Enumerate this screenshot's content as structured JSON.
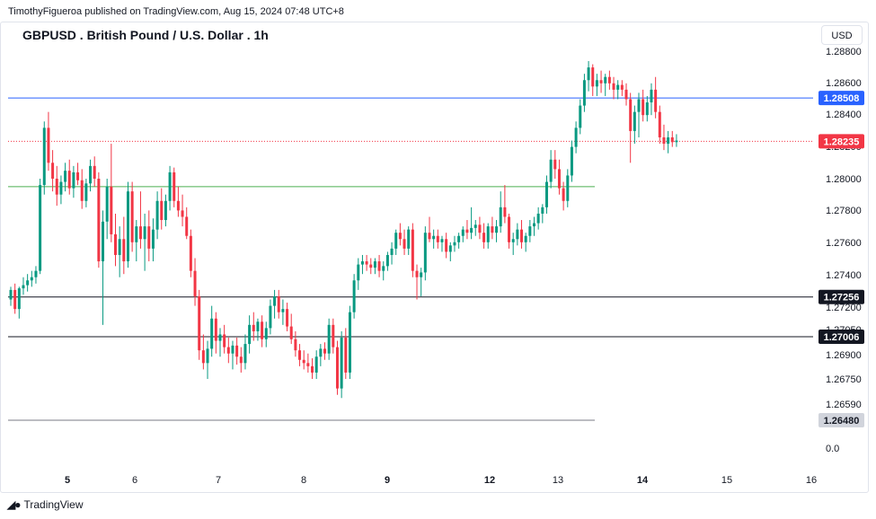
{
  "header": {
    "published": "TimothyFigueroa published on TradingView.com, Aug 15, 2024 07:48 UTC+8"
  },
  "chart_title": "GBPUSD . British Pound / U.S. Dollar . 1h",
  "currency": "USD",
  "footer": {
    "brand": "TradingView",
    "logo_icon": "tradingview-logo-icon"
  },
  "colors": {
    "up": "#089981",
    "down": "#f23645",
    "support_green": "#4caf50",
    "blue_line": "#2962ff",
    "last_price": "#f23645",
    "black_line": "#131722",
    "grey_line": "#787b86"
  },
  "chart_data": {
    "type": "candlestick",
    "title": "GBPUSD . British Pound / U.S. Dollar . 1h",
    "price_axis_ticks": [
      "1.28800",
      "1.28600",
      "1.28400",
      "1.28200",
      "1.28000",
      "1.27800",
      "1.27600",
      "1.27400",
      "1.27200",
      "1.27050",
      "1.26900",
      "1.26750",
      "1.26590",
      "0.0"
    ],
    "time_axis_ticks": [
      "5",
      "6",
      "7",
      "8",
      "9",
      "12",
      "13",
      "14",
      "15",
      "16"
    ],
    "horizontal_lines": [
      {
        "price": 1.28508,
        "label": "1.28508",
        "color": "#2962ff",
        "style": "solid",
        "label_bg": "#2962ff"
      },
      {
        "price": 1.28235,
        "label": "1.28235",
        "color": "#f23645",
        "style": "dotted",
        "label_bg": "#f23645"
      },
      {
        "price": 1.2795,
        "label": "",
        "color": "#4caf50",
        "style": "solid"
      },
      {
        "price": 1.27256,
        "label": "1.27256",
        "color": "#131722",
        "style": "solid",
        "label_bg": "#131722"
      },
      {
        "price": 1.27006,
        "label": "1.27006",
        "color": "#131722",
        "style": "solid",
        "label_bg": "#131722"
      },
      {
        "price": 1.2648,
        "label": "1.26480",
        "color": "#787b86",
        "style": "solid",
        "label_bg": "#d1d4dc"
      }
    ],
    "candles": [
      [
        1.2724,
        1.2732,
        1.272,
        1.273
      ],
      [
        1.273,
        1.2734,
        1.2715,
        1.2718
      ],
      [
        1.2718,
        1.2732,
        1.2712,
        1.2731
      ],
      [
        1.2731,
        1.2738,
        1.2727,
        1.2733
      ],
      [
        1.2733,
        1.274,
        1.2729,
        1.2736
      ],
      [
        1.2736,
        1.2742,
        1.2732,
        1.2738
      ],
      [
        1.2738,
        1.2745,
        1.2734,
        1.2742
      ],
      [
        1.2742,
        1.28,
        1.274,
        1.2796
      ],
      [
        1.2796,
        1.2836,
        1.279,
        1.2832
      ],
      [
        1.2832,
        1.2842,
        1.2805,
        1.281
      ],
      [
        1.281,
        1.2818,
        1.2792,
        1.28
      ],
      [
        1.28,
        1.2808,
        1.2783,
        1.279
      ],
      [
        1.279,
        1.2802,
        1.2784,
        1.2798
      ],
      [
        1.2798,
        1.281,
        1.2792,
        1.2805
      ],
      [
        1.2805,
        1.2812,
        1.279,
        1.2794
      ],
      [
        1.2794,
        1.2808,
        1.2788,
        1.2804
      ],
      [
        1.2804,
        1.281,
        1.2796,
        1.2799
      ],
      [
        1.2799,
        1.2806,
        1.2781,
        1.2786
      ],
      [
        1.2786,
        1.28,
        1.2782,
        1.2797
      ],
      [
        1.2797,
        1.2812,
        1.2792,
        1.2808
      ],
      [
        1.2808,
        1.2814,
        1.2795,
        1.28
      ],
      [
        1.28,
        1.2804,
        1.2744,
        1.2748
      ],
      [
        1.2748,
        1.278,
        1.2708,
        1.2773
      ],
      [
        1.2773,
        1.28,
        1.2762,
        1.2795
      ],
      [
        1.2795,
        1.2822,
        1.276,
        1.2765
      ],
      [
        1.2765,
        1.2778,
        1.2745,
        1.2752
      ],
      [
        1.2752,
        1.277,
        1.2738,
        1.2762
      ],
      [
        1.2762,
        1.2776,
        1.274,
        1.2748
      ],
      [
        1.2748,
        1.2798,
        1.2744,
        1.2792
      ],
      [
        1.2792,
        1.2798,
        1.2754,
        1.276
      ],
      [
        1.276,
        1.2774,
        1.2748,
        1.277
      ],
      [
        1.277,
        1.2792,
        1.2756,
        1.2762
      ],
      [
        1.2762,
        1.2778,
        1.2742,
        1.277
      ],
      [
        1.277,
        1.278,
        1.2748,
        1.2756
      ],
      [
        1.2756,
        1.2775,
        1.2748,
        1.2768
      ],
      [
        1.2768,
        1.2792,
        1.2762,
        1.2786
      ],
      [
        1.2786,
        1.2794,
        1.2768,
        1.2774
      ],
      [
        1.2774,
        1.279,
        1.277,
        1.2786
      ],
      [
        1.2786,
        1.2808,
        1.278,
        1.2804
      ],
      [
        1.2804,
        1.2807,
        1.2782,
        1.2786
      ],
      [
        1.2786,
        1.2795,
        1.2776,
        1.278
      ],
      [
        1.278,
        1.279,
        1.277,
        1.2776
      ],
      [
        1.2776,
        1.2782,
        1.2762,
        1.2764
      ],
      [
        1.2764,
        1.2768,
        1.2738,
        1.2742
      ],
      [
        1.2742,
        1.275,
        1.272,
        1.2726
      ],
      [
        1.2726,
        1.273,
        1.2686,
        1.2692
      ],
      [
        1.2692,
        1.2702,
        1.268,
        1.2684
      ],
      [
        1.2684,
        1.2698,
        1.2674,
        1.2693
      ],
      [
        1.2693,
        1.272,
        1.2688,
        1.2712
      ],
      [
        1.2712,
        1.2716,
        1.269,
        1.2698
      ],
      [
        1.2698,
        1.2706,
        1.2688,
        1.2702
      ],
      [
        1.2702,
        1.2708,
        1.269,
        1.2694
      ],
      [
        1.2694,
        1.27,
        1.2684,
        1.269
      ],
      [
        1.269,
        1.2698,
        1.268,
        1.2695
      ],
      [
        1.2695,
        1.27,
        1.2683,
        1.2688
      ],
      [
        1.2688,
        1.2694,
        1.2678,
        1.2684
      ],
      [
        1.2684,
        1.2702,
        1.268,
        1.2696
      ],
      [
        1.2696,
        1.2714,
        1.269,
        1.2708
      ],
      [
        1.2708,
        1.2716,
        1.2698,
        1.2704
      ],
      [
        1.2704,
        1.2712,
        1.2698,
        1.271
      ],
      [
        1.271,
        1.2714,
        1.2694,
        1.2699
      ],
      [
        1.2699,
        1.271,
        1.2694,
        1.2706
      ],
      [
        1.2706,
        1.2724,
        1.2702,
        1.272
      ],
      [
        1.272,
        1.273,
        1.2712,
        1.2726
      ],
      [
        1.2726,
        1.273,
        1.2712,
        1.2716
      ],
      [
        1.2716,
        1.2724,
        1.2708,
        1.2718
      ],
      [
        1.2718,
        1.2722,
        1.2704,
        1.2707
      ],
      [
        1.2707,
        1.2715,
        1.2696,
        1.2699
      ],
      [
        1.2699,
        1.2704,
        1.2688,
        1.2692
      ],
      [
        1.2692,
        1.2696,
        1.2682,
        1.2686
      ],
      [
        1.2686,
        1.2692,
        1.268,
        1.2684
      ],
      [
        1.2684,
        1.269,
        1.2678,
        1.2682
      ],
      [
        1.2682,
        1.2687,
        1.2674,
        1.2678
      ],
      [
        1.2678,
        1.2692,
        1.2674,
        1.2688
      ],
      [
        1.2688,
        1.2696,
        1.2682,
        1.2693
      ],
      [
        1.2693,
        1.2697,
        1.2686,
        1.269
      ],
      [
        1.269,
        1.2712,
        1.2686,
        1.2708
      ],
      [
        1.2708,
        1.2712,
        1.269,
        1.2694
      ],
      [
        1.2694,
        1.2698,
        1.2664,
        1.2668
      ],
      [
        1.2668,
        1.2704,
        1.2662,
        1.27
      ],
      [
        1.27,
        1.2706,
        1.2674,
        1.2678
      ],
      [
        1.2678,
        1.272,
        1.2674,
        1.2716
      ],
      [
        1.2716,
        1.274,
        1.2712,
        1.2736
      ],
      [
        1.2736,
        1.275,
        1.273,
        1.2746
      ],
      [
        1.2746,
        1.2752,
        1.274,
        1.2748
      ],
      [
        1.2748,
        1.2752,
        1.2742,
        1.2746
      ],
      [
        1.2746,
        1.275,
        1.274,
        1.2744
      ],
      [
        1.2744,
        1.275,
        1.274,
        1.2748
      ],
      [
        1.2748,
        1.2752,
        1.2738,
        1.2742
      ],
      [
        1.2742,
        1.2748,
        1.2736,
        1.2745
      ],
      [
        1.2745,
        1.2754,
        1.2742,
        1.2752
      ],
      [
        1.2752,
        1.276,
        1.2746,
        1.2756
      ],
      [
        1.2756,
        1.2768,
        1.2752,
        1.2766
      ],
      [
        1.2766,
        1.2772,
        1.2758,
        1.2762
      ],
      [
        1.2762,
        1.2768,
        1.2752,
        1.2756
      ],
      [
        1.2756,
        1.277,
        1.2752,
        1.2768
      ],
      [
        1.2768,
        1.2772,
        1.2738,
        1.2742
      ],
      [
        1.2742,
        1.2746,
        1.2724,
        1.2738
      ],
      [
        1.2738,
        1.2744,
        1.2726,
        1.2741
      ],
      [
        1.2741,
        1.277,
        1.2736,
        1.2766
      ],
      [
        1.2766,
        1.2776,
        1.276,
        1.2762
      ],
      [
        1.2762,
        1.2768,
        1.2756,
        1.2764
      ],
      [
        1.2764,
        1.2768,
        1.2756,
        1.276
      ],
      [
        1.276,
        1.2764,
        1.2754,
        1.2762
      ],
      [
        1.2762,
        1.2766,
        1.275,
        1.2754
      ],
      [
        1.2754,
        1.276,
        1.2748,
        1.2758
      ],
      [
        1.2758,
        1.2764,
        1.2754,
        1.276
      ],
      [
        1.276,
        1.2766,
        1.2756,
        1.2764
      ],
      [
        1.2764,
        1.277,
        1.276,
        1.2768
      ],
      [
        1.2768,
        1.2774,
        1.2762,
        1.2766
      ],
      [
        1.2766,
        1.2782,
        1.2762,
        1.2769
      ],
      [
        1.2769,
        1.2774,
        1.2764,
        1.2771
      ],
      [
        1.2771,
        1.2776,
        1.2762,
        1.2766
      ],
      [
        1.2766,
        1.2772,
        1.2756,
        1.276
      ],
      [
        1.276,
        1.2772,
        1.2756,
        1.277
      ],
      [
        1.277,
        1.2776,
        1.2762,
        1.2766
      ],
      [
        1.2766,
        1.2774,
        1.276,
        1.277
      ],
      [
        1.277,
        1.2792,
        1.2766,
        1.2782
      ],
      [
        1.2782,
        1.2796,
        1.2772,
        1.2776
      ],
      [
        1.2776,
        1.2778,
        1.2756,
        1.276
      ],
      [
        1.276,
        1.2766,
        1.2752,
        1.2762
      ],
      [
        1.2762,
        1.2772,
        1.2758,
        1.2768
      ],
      [
        1.2768,
        1.2774,
        1.2756,
        1.276
      ],
      [
        1.276,
        1.2766,
        1.2754,
        1.2764
      ],
      [
        1.2764,
        1.2774,
        1.276,
        1.277
      ],
      [
        1.277,
        1.2776,
        1.2764,
        1.2772
      ],
      [
        1.2772,
        1.2782,
        1.2768,
        1.2778
      ],
      [
        1.2778,
        1.2784,
        1.2772,
        1.2782
      ],
      [
        1.2782,
        1.2802,
        1.2778,
        1.2798
      ],
      [
        1.2798,
        1.2818,
        1.2794,
        1.2812
      ],
      [
        1.2812,
        1.2818,
        1.28,
        1.2806
      ],
      [
        1.2806,
        1.2812,
        1.279,
        1.2794
      ],
      [
        1.2794,
        1.2798,
        1.278,
        1.2786
      ],
      [
        1.2786,
        1.2806,
        1.2782,
        1.2802
      ],
      [
        1.2802,
        1.2824,
        1.2798,
        1.282
      ],
      [
        1.282,
        1.2836,
        1.2816,
        1.2832
      ],
      [
        1.2832,
        1.285,
        1.2828,
        1.2846
      ],
      [
        1.2846,
        1.2866,
        1.2842,
        1.2862
      ],
      [
        1.2862,
        1.2874,
        1.2855,
        1.287
      ],
      [
        1.287,
        1.2872,
        1.2852,
        1.2858
      ],
      [
        1.2858,
        1.2866,
        1.2852,
        1.2862
      ],
      [
        1.2862,
        1.2868,
        1.2854,
        1.286
      ],
      [
        1.286,
        1.2866,
        1.2852,
        1.2864
      ],
      [
        1.2864,
        1.2868,
        1.2856,
        1.286
      ],
      [
        1.286,
        1.2864,
        1.285,
        1.2856
      ],
      [
        1.2856,
        1.2862,
        1.285,
        1.2859
      ],
      [
        1.2859,
        1.2862,
        1.2852,
        1.2856
      ],
      [
        1.2856,
        1.286,
        1.2846,
        1.285
      ],
      [
        1.285,
        1.2854,
        1.281,
        1.283
      ],
      [
        1.283,
        1.2846,
        1.2822,
        1.2842
      ],
      [
        1.2842,
        1.2854,
        1.2826,
        1.285
      ],
      [
        1.285,
        1.2856,
        1.2836,
        1.284
      ],
      [
        1.284,
        1.2852,
        1.2836,
        1.2848
      ],
      [
        1.2848,
        1.286,
        1.284,
        1.2856
      ],
      [
        1.2856,
        1.2864,
        1.2838,
        1.2842
      ],
      [
        1.2842,
        1.2846,
        1.2822,
        1.2826
      ],
      [
        1.2826,
        1.2834,
        1.2818,
        1.2822
      ],
      [
        1.2822,
        1.283,
        1.2816,
        1.2826
      ],
      [
        1.2826,
        1.283,
        1.282,
        1.2823
      ],
      [
        1.2823,
        1.2828,
        1.282,
        1.2824
      ]
    ]
  }
}
